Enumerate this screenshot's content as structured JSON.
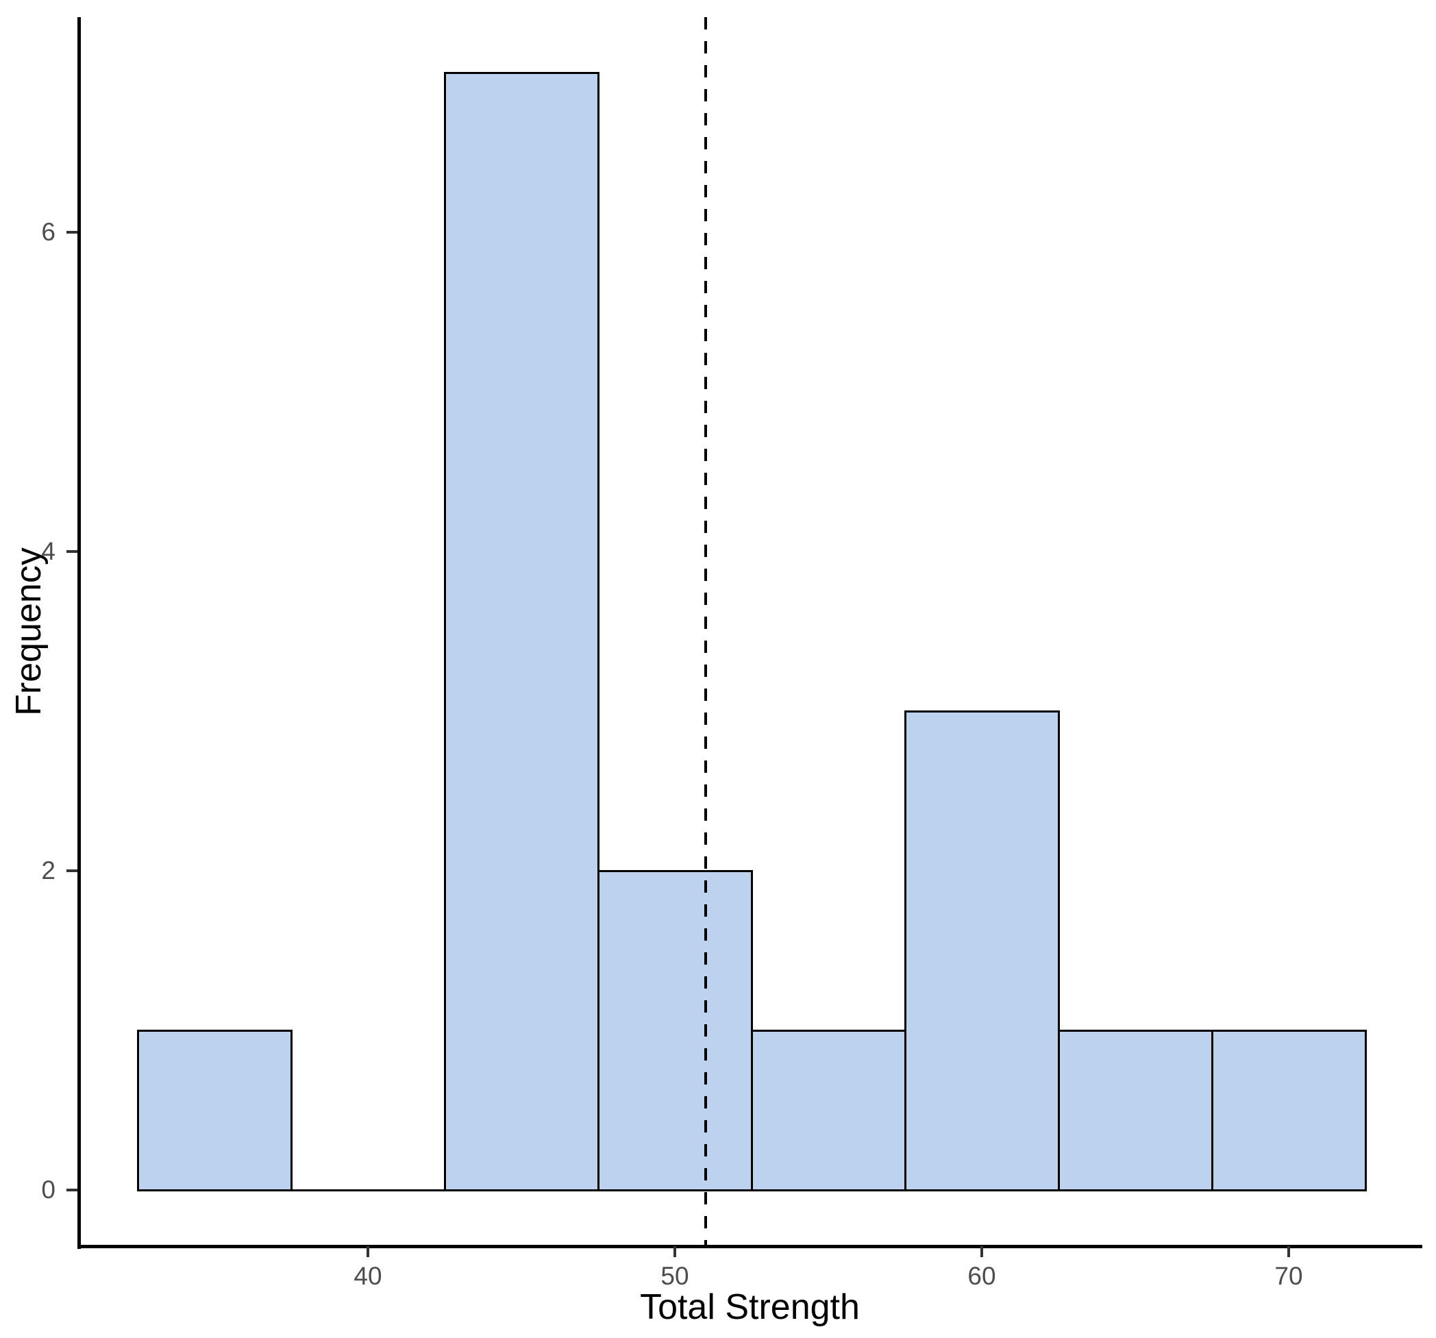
{
  "chart_data": {
    "type": "bar",
    "subtype": "histogram",
    "title": "",
    "xlabel": "Total Strength",
    "ylabel": "Frequency",
    "bin_edges": [
      32.5,
      37.5,
      42.5,
      47.5,
      52.5,
      57.5,
      62.5,
      67.5,
      72.5
    ],
    "counts": [
      1,
      0,
      7,
      2,
      1,
      3,
      1,
      1
    ],
    "x_ticks": [
      40,
      50,
      60,
      70
    ],
    "y_ticks": [
      0,
      2,
      4,
      6
    ],
    "xlim": [
      30.6,
      74.3
    ],
    "ylim": [
      -0.35,
      7.35
    ],
    "vline": {
      "x": 51,
      "style": "dashed",
      "color": "#000000"
    },
    "grid": false,
    "legend": false,
    "colors": {
      "bar_fill": "#bcd2ee",
      "bar_stroke": "#000000",
      "axis_line": "#000000",
      "tick_mark": "#333333",
      "tick_label": "#4d4d4d",
      "axis_title": "#000000",
      "background": "#ffffff"
    }
  }
}
